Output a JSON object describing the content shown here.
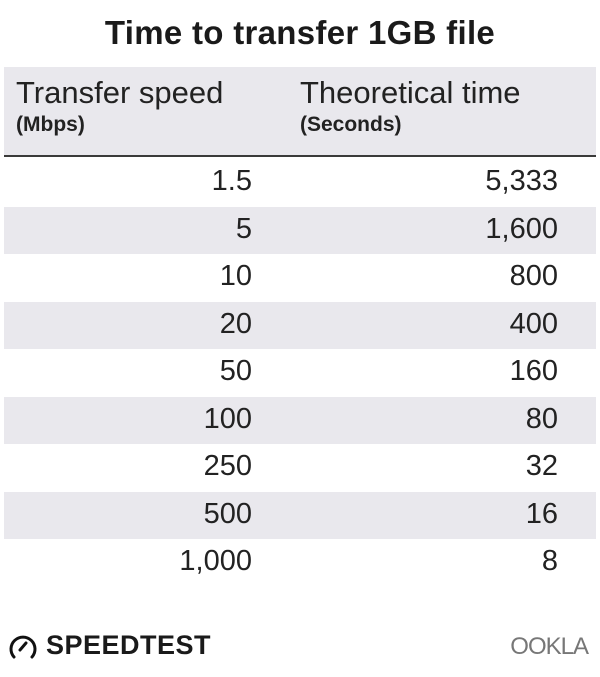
{
  "chart_data": {
    "type": "table",
    "title": "Time to transfer 1GB file",
    "columns": [
      {
        "label": "Transfer speed",
        "unit": "(Mbps)"
      },
      {
        "label": "Theoretical time",
        "unit": "(Seconds)"
      }
    ],
    "rows": [
      [
        "1.5",
        "5,333"
      ],
      [
        "5",
        "1,600"
      ],
      [
        "10",
        "800"
      ],
      [
        "20",
        "400"
      ],
      [
        "50",
        "160"
      ],
      [
        "100",
        "80"
      ],
      [
        "250",
        "32"
      ],
      [
        "500",
        "16"
      ],
      [
        "1,000",
        "8"
      ]
    ],
    "row_stripe_color": "#e9e8ed"
  },
  "footer": {
    "brand_left": "SPEEDTEST",
    "brand_left_icon": "gauge-icon",
    "brand_right": "OOKLA"
  }
}
